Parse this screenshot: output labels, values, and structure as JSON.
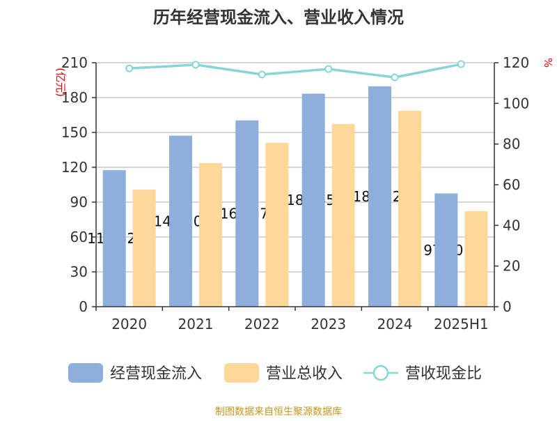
{
  "chart_data": {
    "type": "bar",
    "title": "历年经营现金流入、营业收入情况",
    "categories": [
      "2020",
      "2021",
      "2022",
      "2023",
      "2024",
      "2025H1"
    ],
    "ylabel_left": "(亿元)",
    "ylabel_right": "%",
    "ylim_left": [
      0,
      210
    ],
    "yticks_left": [
      0,
      30,
      60,
      90,
      120,
      150,
      180,
      210
    ],
    "ylim_right": [
      0,
      120
    ],
    "yticks_right": [
      0,
      20,
      40,
      60,
      80,
      100,
      120
    ],
    "grid": true,
    "legend_position": "bottom",
    "series": [
      {
        "name": "经营现金流入",
        "type": "bar",
        "axis": "left",
        "color": "#8eaedb",
        "values": [
          117.52,
          147.2,
          160.37,
          183.35,
          189.72,
          97.5
        ],
        "data_labels": [
          "117.52",
          "147.20",
          "160.37",
          "183.35",
          "189.72",
          "97.50"
        ]
      },
      {
        "name": "营业总收入",
        "type": "bar",
        "axis": "left",
        "color": "#ffd899",
        "values": [
          100.8,
          123.6,
          141.0,
          157.2,
          168.6,
          82.2
        ]
      },
      {
        "name": "营收现金比",
        "type": "line",
        "axis": "right",
        "color": "#88d5d8",
        "values": [
          117.2,
          119.0,
          114.2,
          116.9,
          112.8,
          119.3
        ]
      }
    ],
    "source": "制图数据来自恒生聚源数据库"
  }
}
